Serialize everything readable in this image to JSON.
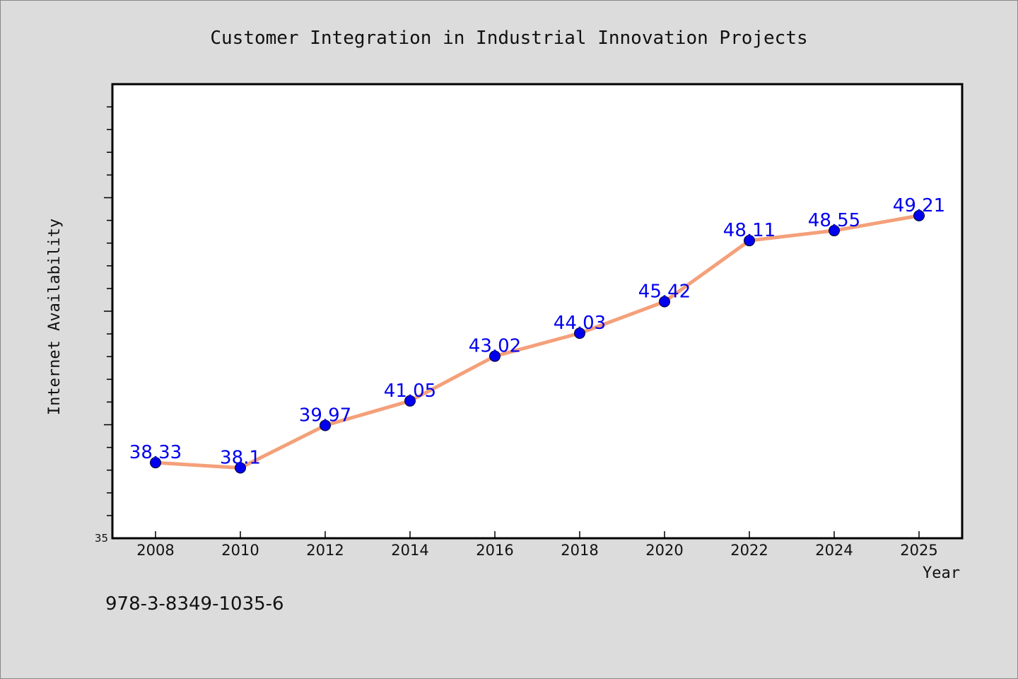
{
  "footer_text": "978-3-8349-1035-6",
  "chart_data": {
    "type": "line",
    "title": "Customer Integration in Industrial Innovation Projects",
    "xlabel": "Year",
    "ylabel": "Internet Availability",
    "x": [
      "2008",
      "2010",
      "2012",
      "2014",
      "2016",
      "2018",
      "2020",
      "2022",
      "2024",
      "2025"
    ],
    "values": [
      38.33,
      38.1,
      39.97,
      41.05,
      43.02,
      44.03,
      45.42,
      48.11,
      48.55,
      49.21
    ],
    "data_labels": [
      "38.33",
      "38.1",
      "39.97",
      "41.05",
      "43.02",
      "44.03",
      "45.42",
      "48.11",
      "48.55",
      "49.21"
    ],
    "ylim": [
      35,
      55
    ],
    "yticks_labeled": [
      "35"
    ],
    "grid": false,
    "legend": "none",
    "colors": {
      "line": "#f4a07a",
      "marker": "#0000ee",
      "label": "#0000ee",
      "plot_bg": "#ffffff",
      "page_bg": "#dcdcdc"
    }
  }
}
